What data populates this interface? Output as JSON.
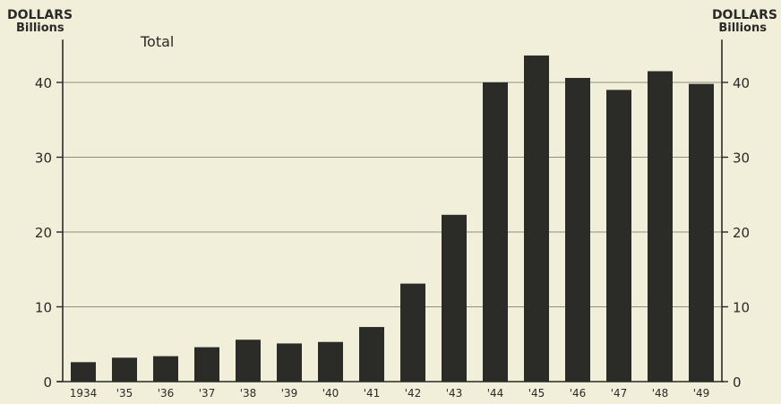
{
  "chart_data": {
    "type": "bar",
    "title": "Total",
    "y_unit_top": "DOLLARS",
    "y_unit_bottom": "Billions",
    "categories": [
      "1934",
      "'35",
      "'36",
      "'37",
      "'38",
      "'39",
      "'40",
      "'41",
      "'42",
      "'43",
      "'44",
      "'45",
      "'46",
      "'47",
      "'48",
      "'49"
    ],
    "values": [
      2.6,
      3.2,
      3.4,
      4.6,
      5.6,
      5.1,
      5.3,
      7.3,
      13.1,
      22.3,
      40.0,
      43.6,
      40.6,
      39.0,
      41.5,
      39.8
    ],
    "y_ticks": [
      0,
      10,
      20,
      30,
      40
    ],
    "ylim": [
      0,
      45
    ],
    "grid": true,
    "bar_color": "#2b2b27",
    "background": "#f1efd9"
  }
}
